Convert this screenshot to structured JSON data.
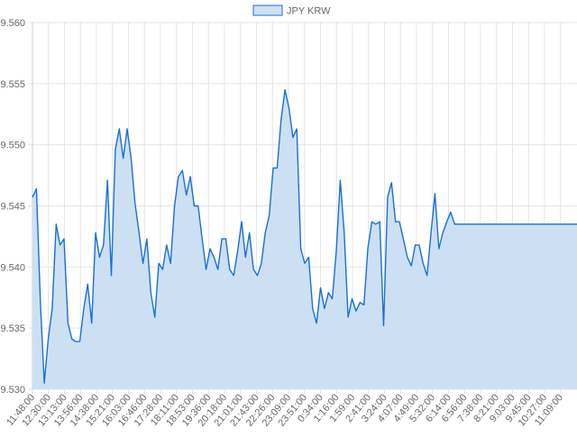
{
  "chart_data": {
    "type": "area",
    "legend": {
      "position": "top",
      "entries": [
        "JPY KRW"
      ]
    },
    "series": [
      {
        "name": "JPY KRW",
        "line_color": "#1a6fd6",
        "fill_color": "#cde0f3",
        "values": [
          9.5457,
          9.5464,
          9.5371,
          9.5305,
          9.5341,
          9.5366,
          9.5435,
          9.5418,
          9.5423,
          9.5354,
          9.5341,
          9.5339,
          9.5339,
          9.5366,
          9.5386,
          9.5354,
          9.5428,
          9.5408,
          9.5418,
          9.5471,
          9.5393,
          9.5496,
          9.5513,
          9.5489,
          9.5513,
          9.5489,
          9.5452,
          9.5428,
          9.5403,
          9.5423,
          9.5379,
          9.5359,
          9.5403,
          9.5398,
          9.5418,
          9.5403,
          9.545,
          9.5474,
          9.5479,
          9.5459,
          9.5474,
          9.545,
          9.545,
          9.5423,
          9.5398,
          9.5415,
          9.5408,
          9.5398,
          9.5423,
          9.5423,
          9.5398,
          9.5393,
          9.5413,
          9.5437,
          9.5408,
          9.5428,
          9.5398,
          9.5393,
          9.5403,
          9.5428,
          9.5442,
          9.5481,
          9.5481,
          9.552,
          9.5545,
          9.553,
          9.5506,
          9.5513,
          9.5415,
          9.5403,
          9.5408,
          9.5366,
          9.5354,
          9.5383,
          9.5366,
          9.5379,
          9.5374,
          9.5413,
          9.5471,
          9.5428,
          9.5359,
          9.5374,
          9.5364,
          9.5371,
          9.5369,
          9.5415,
          9.5437,
          9.5435,
          9.5437,
          9.5352,
          9.5457,
          9.5469,
          9.5437,
          9.5437,
          9.5423,
          9.5408,
          9.5401,
          9.5418,
          9.5418,
          9.5403,
          9.5393,
          9.5428,
          9.546,
          9.5415,
          9.5428,
          9.5437,
          9.5445,
          9.5435,
          9.5435,
          9.5435,
          9.5435,
          9.5435,
          9.5435,
          9.5435,
          9.5435,
          9.5435,
          9.5435,
          9.5435,
          9.5435,
          9.5435,
          9.5435,
          9.5435,
          9.5435,
          9.5435,
          9.5435,
          9.5435,
          9.5435,
          9.5435,
          9.5435,
          9.5435,
          9.5435,
          9.5435,
          9.5435,
          9.5435,
          9.5435,
          9.5435,
          9.5435,
          9.5435,
          9.5435
        ]
      }
    ],
    "x_tick_labels": [
      "11:48:00",
      "12:30:00",
      "13:13:00",
      "13:56:00",
      "14:38:00",
      "15:21:00",
      "16:03:00",
      "16:46:00",
      "17:28:00",
      "18:11:00",
      "18:53:00",
      "19:36:00",
      "20:18:00",
      "21:01:00",
      "21:43:00",
      "22:26:00",
      "23:09:00",
      "23:51:00",
      "0:34:00",
      "1:16:00",
      "1:59:00",
      "2:41:00",
      "3:24:00",
      "4:07:00",
      "4:49:00",
      "5:32:00",
      "6:14:00",
      "6:56:00",
      "7:38:00",
      "8:21:00",
      "9:03:00",
      "9:45:00",
      "10:27:00",
      "11:09:00"
    ],
    "y_tick_labels": [
      "9.560",
      "9.555",
      "9.550",
      "9.545",
      "9.540",
      "9.535",
      "9.530"
    ],
    "ylim": [
      9.53,
      9.56
    ],
    "grid": true
  }
}
